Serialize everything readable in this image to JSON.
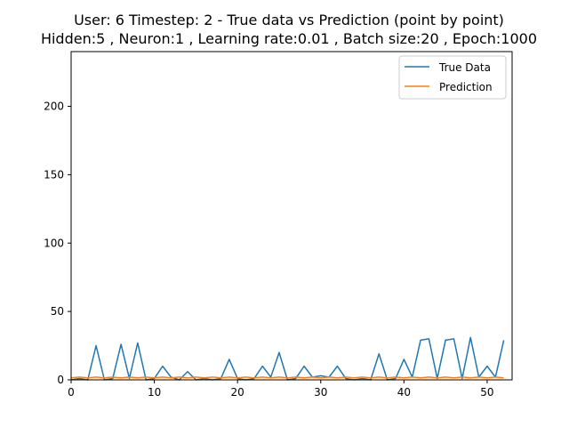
{
  "chart_data": {
    "type": "line",
    "title_line1": "User: 6 Timestep: 2 - True data vs Prediction (point by point)",
    "title_line2": "Hidden:5 , Neuron:1 , Learning rate:0.01 , Batch size:20 , Epoch:1000",
    "xlabel": "",
    "ylabel": "",
    "xlim": [
      0,
      53
    ],
    "ylim": [
      0,
      240
    ],
    "xticks": [
      0,
      10,
      20,
      30,
      40,
      50
    ],
    "yticks": [
      0,
      50,
      100,
      150,
      200
    ],
    "grid": false,
    "legend_position": "upper right",
    "series": [
      {
        "name": "True Data",
        "color": "#1f77b4",
        "values": [
          0,
          1,
          0,
          25,
          0,
          1,
          26,
          1,
          27,
          0,
          1,
          10,
          2,
          0,
          6,
          0,
          1,
          0,
          1,
          15,
          1,
          0,
          1,
          10,
          2,
          20,
          0,
          1,
          10,
          2,
          3,
          2,
          10,
          1,
          0,
          1,
          0,
          19,
          0,
          1,
          15,
          2,
          29,
          30,
          1,
          29,
          30,
          1,
          31,
          2,
          10,
          2,
          29
        ]
      },
      {
        "name": "Prediction",
        "color": "#ff7f0e",
        "values": [
          1.5,
          2,
          1.5,
          2,
          1.5,
          2,
          1.5,
          2,
          1.5,
          2,
          1.5,
          2,
          1.5,
          2,
          1.5,
          2,
          1.5,
          2,
          1.5,
          2,
          1.5,
          2,
          1.5,
          2,
          1.5,
          2,
          1.5,
          2,
          1.5,
          2,
          1.5,
          2,
          1.5,
          2,
          1.5,
          2,
          1.5,
          2,
          1.5,
          2,
          1.5,
          2,
          1.5,
          2,
          1.5,
          2,
          1.5,
          2,
          1.5,
          2,
          1.5,
          2,
          1.5
        ]
      }
    ]
  }
}
